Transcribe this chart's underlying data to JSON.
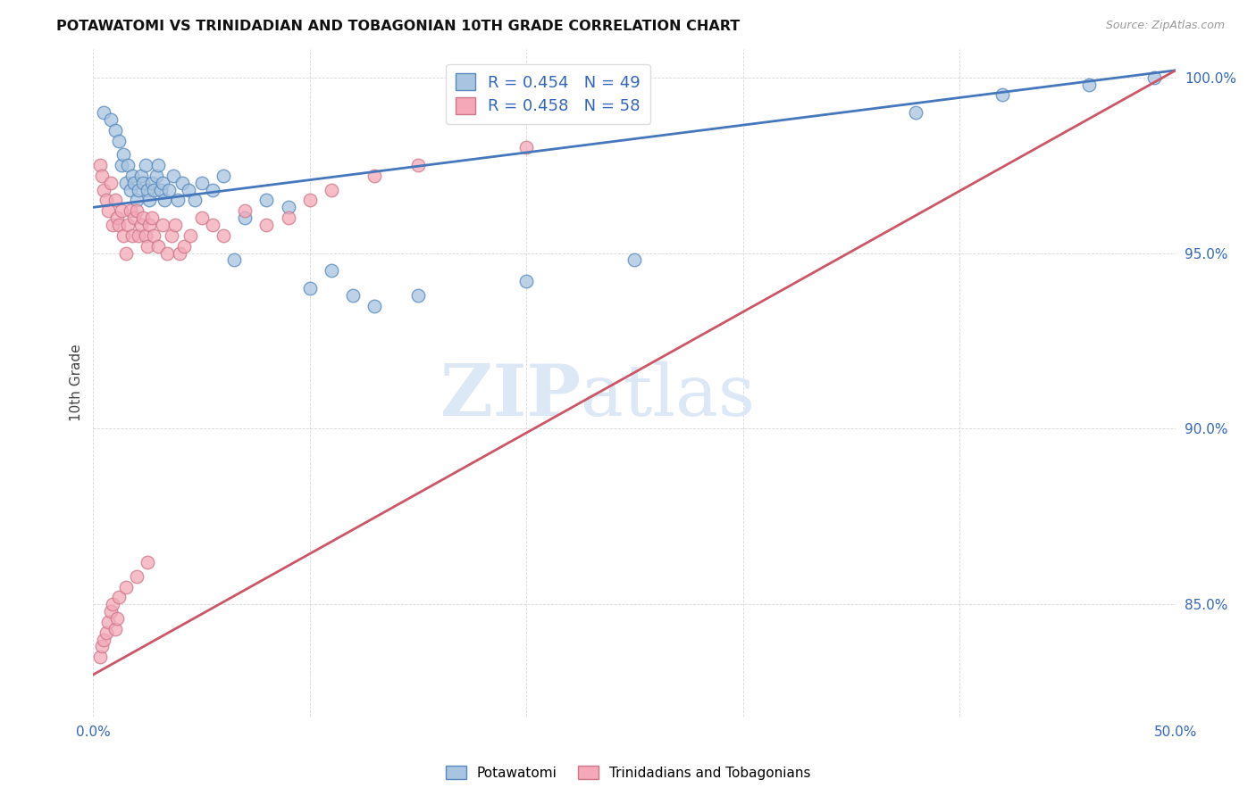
{
  "title": "POTAWATOMI VS TRINIDADIAN AND TOBAGONIAN 10TH GRADE CORRELATION CHART",
  "source": "Source: ZipAtlas.com",
  "ylabel": "10th Grade",
  "xlim": [
    0.0,
    0.5
  ],
  "ylim": [
    0.818,
    1.008
  ],
  "xticks": [
    0.0,
    0.1,
    0.2,
    0.3,
    0.4,
    0.5
  ],
  "xticklabels": [
    "0.0%",
    "",
    "",
    "",
    "",
    "50.0%"
  ],
  "yticks": [
    0.85,
    0.9,
    0.95,
    1.0
  ],
  "yticklabels": [
    "85.0%",
    "90.0%",
    "95.0%",
    "100.0%"
  ],
  "blue_r": 0.454,
  "blue_n": 49,
  "pink_r": 0.458,
  "pink_n": 58,
  "blue_color": "#A8C4E0",
  "pink_color": "#F4A8B8",
  "blue_edge_color": "#5588BB",
  "pink_edge_color": "#CC7788",
  "blue_line_color": "#4477BB",
  "pink_line_color": "#CC5566",
  "watermark_zip": "ZIP",
  "watermark_atlas": "atlas",
  "watermark_color": "#DCE8F5",
  "grid_color": "#CCCCCC",
  "background_color": "#FFFFFF",
  "blue_scatter_x": [
    0.005,
    0.008,
    0.01,
    0.012,
    0.013,
    0.014,
    0.015,
    0.016,
    0.017,
    0.018,
    0.019,
    0.02,
    0.021,
    0.022,
    0.023,
    0.024,
    0.025,
    0.026,
    0.027,
    0.028,
    0.029,
    0.03,
    0.031,
    0.032,
    0.033,
    0.035,
    0.037,
    0.039,
    0.041,
    0.044,
    0.047,
    0.05,
    0.055,
    0.06,
    0.065,
    0.07,
    0.08,
    0.09,
    0.1,
    0.11,
    0.12,
    0.13,
    0.15,
    0.2,
    0.25,
    0.38,
    0.42,
    0.46,
    0.49
  ],
  "blue_scatter_y": [
    0.99,
    0.988,
    0.985,
    0.982,
    0.975,
    0.978,
    0.97,
    0.975,
    0.968,
    0.972,
    0.97,
    0.965,
    0.968,
    0.972,
    0.97,
    0.975,
    0.968,
    0.965,
    0.97,
    0.968,
    0.972,
    0.975,
    0.968,
    0.97,
    0.965,
    0.968,
    0.972,
    0.965,
    0.97,
    0.968,
    0.965,
    0.97,
    0.968,
    0.972,
    0.948,
    0.96,
    0.965,
    0.963,
    0.94,
    0.945,
    0.938,
    0.935,
    0.938,
    0.942,
    0.948,
    0.99,
    0.995,
    0.998,
    1.0
  ],
  "pink_scatter_x": [
    0.003,
    0.004,
    0.005,
    0.006,
    0.007,
    0.008,
    0.009,
    0.01,
    0.011,
    0.012,
    0.013,
    0.014,
    0.015,
    0.016,
    0.017,
    0.018,
    0.019,
    0.02,
    0.021,
    0.022,
    0.023,
    0.024,
    0.025,
    0.026,
    0.027,
    0.028,
    0.03,
    0.032,
    0.034,
    0.036,
    0.038,
    0.04,
    0.042,
    0.045,
    0.05,
    0.055,
    0.06,
    0.07,
    0.08,
    0.09,
    0.1,
    0.11,
    0.13,
    0.15,
    0.2,
    0.003,
    0.004,
    0.005,
    0.006,
    0.007,
    0.008,
    0.009,
    0.01,
    0.011,
    0.012,
    0.015,
    0.02,
    0.025
  ],
  "pink_scatter_y": [
    0.975,
    0.972,
    0.968,
    0.965,
    0.962,
    0.97,
    0.958,
    0.965,
    0.96,
    0.958,
    0.962,
    0.955,
    0.95,
    0.958,
    0.962,
    0.955,
    0.96,
    0.962,
    0.955,
    0.958,
    0.96,
    0.955,
    0.952,
    0.958,
    0.96,
    0.955,
    0.952,
    0.958,
    0.95,
    0.955,
    0.958,
    0.95,
    0.952,
    0.955,
    0.96,
    0.958,
    0.955,
    0.962,
    0.958,
    0.96,
    0.965,
    0.968,
    0.972,
    0.975,
    0.98,
    0.835,
    0.838,
    0.84,
    0.842,
    0.845,
    0.848,
    0.85,
    0.843,
    0.846,
    0.852,
    0.855,
    0.858,
    0.862
  ],
  "blue_trend_x0": 0.0,
  "blue_trend_y0": 0.963,
  "blue_trend_x1": 0.5,
  "blue_trend_y1": 1.002,
  "pink_trend_x0": 0.0,
  "pink_trend_y0": 0.83,
  "pink_trend_x1": 0.5,
  "pink_trend_y1": 1.002
}
